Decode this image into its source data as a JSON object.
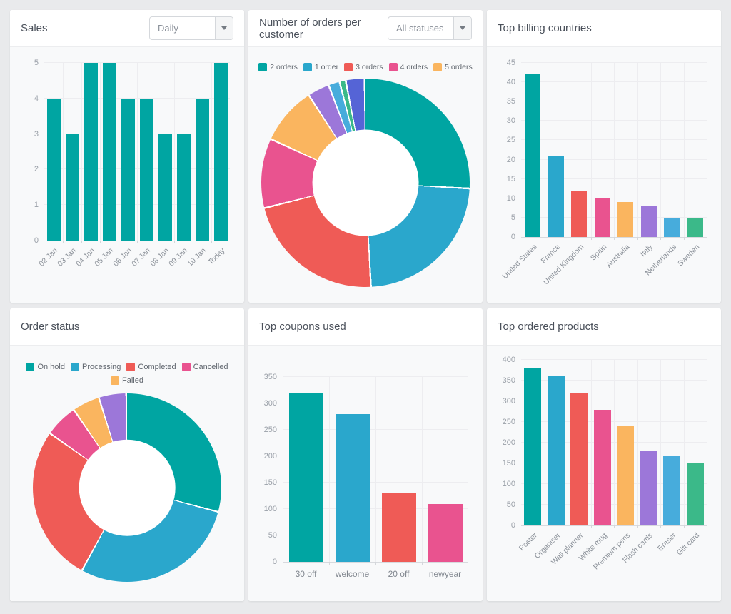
{
  "panels": [
    {
      "title": "Sales",
      "dropdown": {
        "value": "Daily"
      }
    },
    {
      "title": "Number of orders per customer",
      "dropdown": {
        "value": "All statuses"
      }
    },
    {
      "title": "Top billing countries"
    },
    {
      "title": "Order status"
    },
    {
      "title": "Top coupons used"
    },
    {
      "title": "Top ordered products"
    }
  ],
  "chart_data": [
    {
      "type": "bar",
      "title": "Sales",
      "categories": [
        "02 Jan",
        "03 Jan",
        "04 Jan",
        "05 Jan",
        "06 Jan",
        "07 Jan",
        "08 Jan",
        "09 Jan",
        "10 Jan",
        "Today"
      ],
      "values": [
        4,
        3,
        5,
        5,
        4,
        4,
        3,
        3,
        4,
        5
      ],
      "bar_color": "#00a5a2",
      "ylim": [
        0,
        5
      ],
      "yticks": [
        0,
        1,
        2,
        3,
        4,
        5
      ],
      "grid": true,
      "xlabels_rotated": true,
      "xlabel": "",
      "ylabel": ""
    },
    {
      "type": "donut",
      "title": "Number of orders per customer",
      "legend_position": "top",
      "slices": [
        {
          "label": "2 orders",
          "percent": 26.4,
          "color": "#00a5a2",
          "in_legend": true
        },
        {
          "label": "1 order",
          "percent": 23.6,
          "color": "#2aa7cc",
          "in_legend": true
        },
        {
          "label": "3 orders",
          "percent": 22.2,
          "color": "#ef5b56",
          "in_legend": true
        },
        {
          "label": "4 orders",
          "percent": 10.8,
          "color": "#e9538f",
          "in_legend": true
        },
        {
          "label": "5 orders",
          "percent": 8.9,
          "color": "#fab55f",
          "in_legend": true
        },
        {
          "label": "",
          "percent": 3.2,
          "color": "#9c77d9",
          "in_legend": false
        },
        {
          "label": "",
          "percent": 1.5,
          "color": "#47acdc",
          "in_legend": false
        },
        {
          "label": "",
          "percent": 0.7,
          "color": "#3bb989",
          "in_legend": false
        },
        {
          "label": "",
          "percent": 2.7,
          "color": "#5564d6",
          "in_legend": false
        }
      ]
    },
    {
      "type": "bar",
      "title": "Top billing countries",
      "categories": [
        "United States",
        "France",
        "United Kingdom",
        "Spain",
        "Australia",
        "Italy",
        "Netherlands",
        "Sweden"
      ],
      "values": [
        42,
        21,
        12,
        10,
        9,
        8,
        5,
        5
      ],
      "colors": [
        "#00a5a2",
        "#2aa7cc",
        "#ef5b56",
        "#e9538f",
        "#fab55f",
        "#9c77d9",
        "#47acdc",
        "#3bb989"
      ],
      "ylim": [
        0,
        45
      ],
      "yticks": [
        0,
        5,
        10,
        15,
        20,
        25,
        30,
        35,
        40,
        45
      ],
      "grid": true,
      "xlabels_rotated": true,
      "xlabel": "",
      "ylabel": ""
    },
    {
      "type": "donut",
      "title": "Order status",
      "legend_position": "top",
      "slices": [
        {
          "label": "On hold",
          "percent": 29.5,
          "color": "#00a5a2",
          "in_legend": true
        },
        {
          "label": "Processing",
          "percent": 29.0,
          "color": "#2aa7cc",
          "in_legend": true
        },
        {
          "label": "Completed",
          "percent": 27.0,
          "color": "#ef5b56",
          "in_legend": true
        },
        {
          "label": "Cancelled",
          "percent": 5.5,
          "color": "#e9538f",
          "in_legend": true
        },
        {
          "label": "Failed",
          "percent": 4.5,
          "color": "#fab55f",
          "in_legend": true
        },
        {
          "label": "",
          "percent": 4.5,
          "color": "#9c77d9",
          "in_legend": false
        }
      ]
    },
    {
      "type": "bar",
      "title": "Top coupons used",
      "categories": [
        "30 off",
        "welcome",
        "20 off",
        "newyear"
      ],
      "values": [
        320,
        280,
        130,
        110
      ],
      "colors": [
        "#00a5a2",
        "#2aa7cc",
        "#ef5b56",
        "#e9538f"
      ],
      "ylim": [
        0,
        350
      ],
      "yticks": [
        0,
        50,
        100,
        150,
        200,
        250,
        300,
        350
      ],
      "grid": true,
      "xlabels_rotated": false,
      "xlabel": "",
      "ylabel": ""
    },
    {
      "type": "bar",
      "title": "Top ordered products",
      "categories": [
        "Poster",
        "Organiser",
        "Wall planner",
        "White mug",
        "Premium pens",
        "Flash cards",
        "Eraser",
        "Gift card"
      ],
      "values": [
        380,
        360,
        320,
        280,
        240,
        180,
        168,
        150
      ],
      "colors": [
        "#00a5a2",
        "#2aa7cc",
        "#ef5b56",
        "#e9538f",
        "#fab55f",
        "#9c77d9",
        "#47acdc",
        "#3bb989"
      ],
      "ylim": [
        0,
        400
      ],
      "yticks": [
        0,
        50,
        100,
        150,
        200,
        250,
        300,
        350,
        400
      ],
      "grid": true,
      "xlabels_rotated": true,
      "xlabel": "",
      "ylabel": ""
    }
  ]
}
